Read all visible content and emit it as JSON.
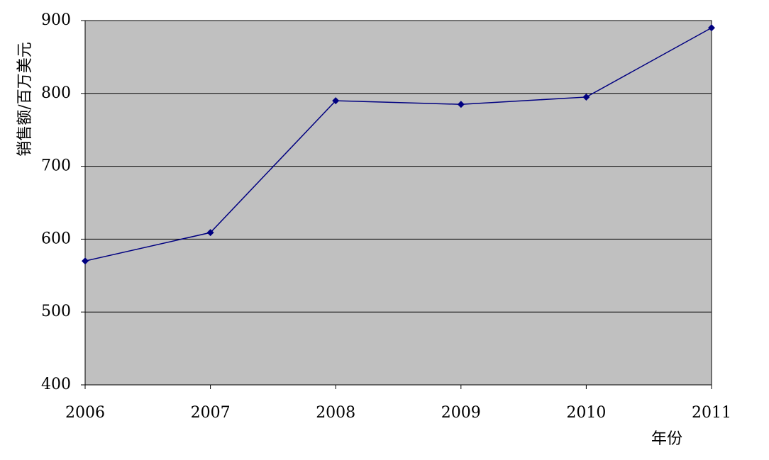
{
  "chart_data": {
    "type": "line",
    "x_label": "年份",
    "y_label": "销售额/百万美元",
    "x": [
      2006,
      2007,
      2008,
      2009,
      2010,
      2011
    ],
    "values": [
      570,
      609,
      790,
      785,
      795,
      890
    ],
    "color": "#000080",
    "background": "#c0c0c0",
    "xlim": [
      2006,
      2011
    ],
    "xticks": [
      2006,
      2007,
      2008,
      2009,
      2010,
      2011
    ],
    "ylim": [
      400,
      900
    ],
    "yticks": [
      400,
      500,
      600,
      700,
      800,
      900
    ],
    "grid": true
  }
}
